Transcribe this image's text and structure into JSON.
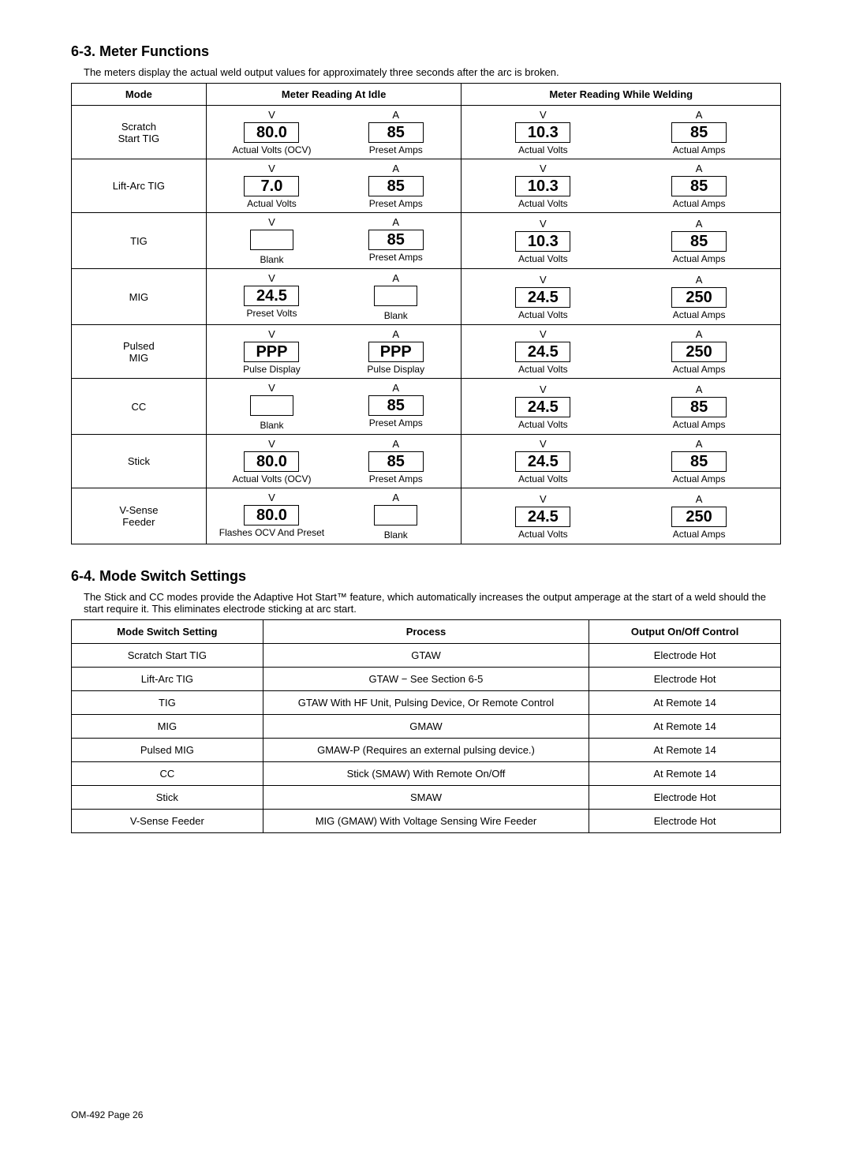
{
  "section63": {
    "title": "6-3. Meter Functions",
    "intro": "The meters display the actual weld output values for approximately three seconds after the arc is broken.",
    "headers": {
      "mode": "Mode",
      "idle": "Meter Reading At Idle",
      "welding": "Meter Reading While Welding"
    },
    "rows": [
      {
        "mode": "Scratch\nStart TIG",
        "idle": [
          {
            "unit": "V",
            "value": "80.0",
            "caption": "Actual Volts (OCV)"
          },
          {
            "unit": "A",
            "value": "85",
            "caption": "Preset Amps"
          }
        ],
        "weld": [
          {
            "unit": "V",
            "value": "10.3",
            "caption": "Actual Volts"
          },
          {
            "unit": "A",
            "value": "85",
            "caption": "Actual Amps"
          }
        ]
      },
      {
        "mode": "Lift-Arc TIG",
        "idle": [
          {
            "unit": "V",
            "value": "7.0",
            "caption": "Actual Volts"
          },
          {
            "unit": "A",
            "value": "85",
            "caption": "Preset Amps"
          }
        ],
        "weld": [
          {
            "unit": "V",
            "value": "10.3",
            "caption": "Actual Volts"
          },
          {
            "unit": "A",
            "value": "85",
            "caption": "Actual Amps"
          }
        ]
      },
      {
        "mode": "TIG",
        "idle": [
          {
            "unit": "V",
            "value": "",
            "caption": "Blank"
          },
          {
            "unit": "A",
            "value": "85",
            "caption": "Preset Amps"
          }
        ],
        "weld": [
          {
            "unit": "V",
            "value": "10.3",
            "caption": "Actual Volts"
          },
          {
            "unit": "A",
            "value": "85",
            "caption": "Actual Amps"
          }
        ]
      },
      {
        "mode": "MIG",
        "idle": [
          {
            "unit": "V",
            "value": "24.5",
            "caption": "Preset Volts"
          },
          {
            "unit": "A",
            "value": "",
            "caption": "Blank"
          }
        ],
        "weld": [
          {
            "unit": "V",
            "value": "24.5",
            "caption": "Actual Volts"
          },
          {
            "unit": "A",
            "value": "250",
            "caption": "Actual Amps"
          }
        ]
      },
      {
        "mode": "Pulsed\nMIG",
        "idle": [
          {
            "unit": "V",
            "value": "PPP",
            "caption": "Pulse Display"
          },
          {
            "unit": "A",
            "value": "PPP",
            "caption": "Pulse Display"
          }
        ],
        "weld": [
          {
            "unit": "V",
            "value": "24.5",
            "caption": "Actual Volts"
          },
          {
            "unit": "A",
            "value": "250",
            "caption": "Actual Amps"
          }
        ]
      },
      {
        "mode": "CC",
        "idle": [
          {
            "unit": "V",
            "value": "",
            "caption": "Blank"
          },
          {
            "unit": "A",
            "value": "85",
            "caption": "Preset Amps"
          }
        ],
        "weld": [
          {
            "unit": "V",
            "value": "24.5",
            "caption": "Actual Volts"
          },
          {
            "unit": "A",
            "value": "85",
            "caption": "Actual Amps"
          }
        ]
      },
      {
        "mode": "Stick",
        "idle": [
          {
            "unit": "V",
            "value": "80.0",
            "caption": "Actual Volts (OCV)"
          },
          {
            "unit": "A",
            "value": "85",
            "caption": "Preset Amps"
          }
        ],
        "weld": [
          {
            "unit": "V",
            "value": "24.5",
            "caption": "Actual Volts"
          },
          {
            "unit": "A",
            "value": "85",
            "caption": "Actual Amps"
          }
        ]
      },
      {
        "mode": "V-Sense\nFeeder",
        "idle": [
          {
            "unit": "V",
            "value": "80.0",
            "caption": "Flashes OCV And Preset"
          },
          {
            "unit": "A",
            "value": "",
            "caption": "Blank"
          }
        ],
        "weld": [
          {
            "unit": "V",
            "value": "24.5",
            "caption": "Actual Volts"
          },
          {
            "unit": "A",
            "value": "250",
            "caption": "Actual Amps"
          }
        ]
      }
    ]
  },
  "section64": {
    "title": "6-4. Mode Switch Settings",
    "intro": "The Stick and CC modes provide the Adaptive Hot Start™ feature, which automatically increases the output amperage at the start of a weld should the start require it. This eliminates electrode sticking at arc start.",
    "headers": {
      "setting": "Mode Switch Setting",
      "process": "Process",
      "output": "Output On/Off Control"
    },
    "rows": [
      {
        "setting": "Scratch Start TIG",
        "process": "GTAW",
        "output": "Electrode Hot"
      },
      {
        "setting": "Lift-Arc TIG",
        "process": "GTAW − See Section 6-5",
        "output": "Electrode Hot"
      },
      {
        "setting": "TIG",
        "process": "GTAW With HF Unit, Pulsing Device, Or Remote Control",
        "output": "At Remote 14"
      },
      {
        "setting": "MIG",
        "process": "GMAW",
        "output": "At Remote 14"
      },
      {
        "setting": "Pulsed MIG",
        "process": "GMAW-P (Requires an external pulsing device.)",
        "output": "At Remote 14"
      },
      {
        "setting": "CC",
        "process": "Stick (SMAW) With Remote On/Off",
        "output": "At Remote 14"
      },
      {
        "setting": "Stick",
        "process": "SMAW",
        "output": "Electrode Hot"
      },
      {
        "setting": "V-Sense Feeder",
        "process": "MIG (GMAW) With Voltage Sensing Wire Feeder",
        "output": "Electrode Hot"
      }
    ]
  },
  "footer": "OM-492 Page 26"
}
